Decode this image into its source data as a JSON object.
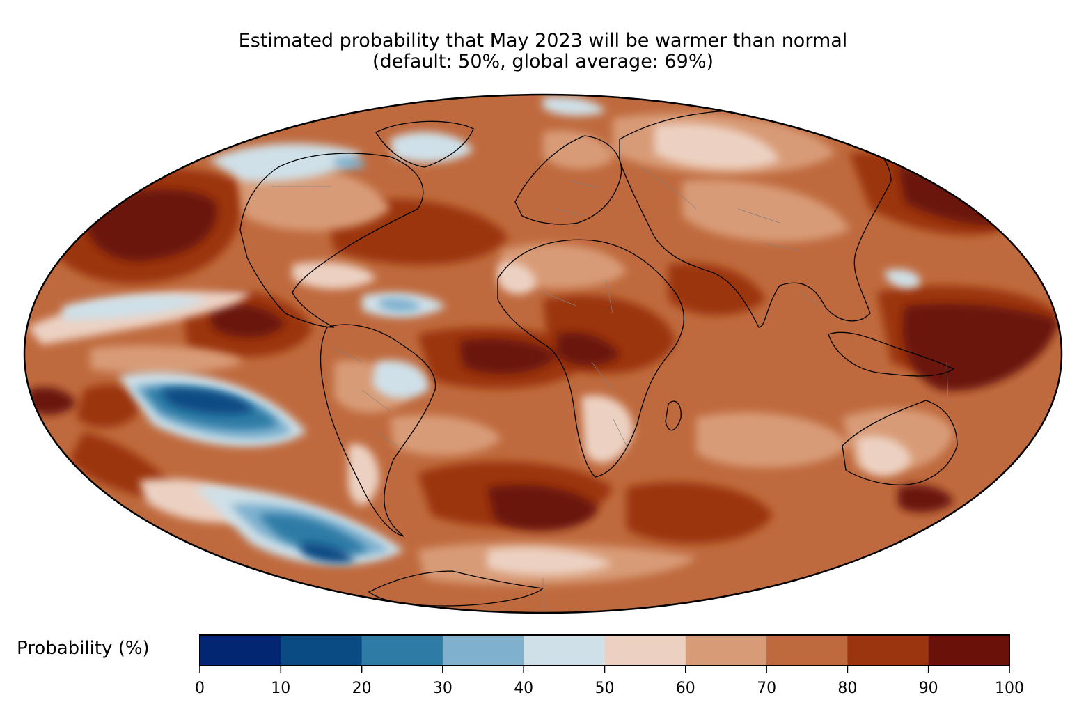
{
  "title": {
    "line1": "Estimated probability that May 2023 will be warmer than normal",
    "line2": "(default: 50%, global average: 69%)"
  },
  "colorbar": {
    "label": "Probability (%)",
    "ticks": [
      "0",
      "10",
      "20",
      "30",
      "40",
      "50",
      "60",
      "70",
      "80",
      "90",
      "100"
    ],
    "bins": [
      {
        "range": [
          0,
          10
        ],
        "color": "#022672"
      },
      {
        "range": [
          10,
          20
        ],
        "color": "#0a4b84"
      },
      {
        "range": [
          20,
          30
        ],
        "color": "#2e7ba6"
      },
      {
        "range": [
          30,
          40
        ],
        "color": "#7fb1cf"
      },
      {
        "range": [
          40,
          50
        ],
        "color": "#cfe0e8"
      },
      {
        "range": [
          50,
          60
        ],
        "color": "#ecd1c2"
      },
      {
        "range": [
          60,
          70
        ],
        "color": "#d89b77"
      },
      {
        "range": [
          70,
          80
        ],
        "color": "#bf6a3e"
      },
      {
        "range": [
          80,
          90
        ],
        "color": "#9b3510"
      },
      {
        "range": [
          90,
          100
        ],
        "color": "#6a120a"
      }
    ]
  },
  "map": {
    "projection": "Mollweide",
    "field": "probability of warmer than normal (%)",
    "ocean_background_color": "#bf6a3e",
    "coastline_color": "#000000",
    "border_color": "#808080"
  }
}
